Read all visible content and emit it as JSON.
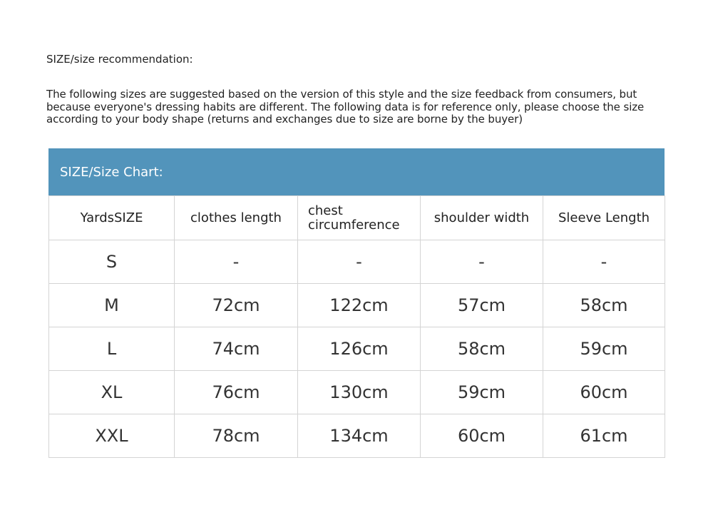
{
  "title": "SIZE/size recommendation:",
  "description": "The following sizes are suggested based on the version of this style and the size feedback from consumers, but because everyone's dressing habits are different. The following data is for reference only, please choose the size according to your body shape (returns and exchanges due to size are borne by the buyer)",
  "chart": {
    "heading": "SIZE/Size Chart:",
    "header_color": "#5294bb",
    "columns": [
      "YardsSIZE",
      "clothes length",
      "chest circumference",
      "shoulder width",
      "Sleeve Length"
    ],
    "rows": [
      [
        "S",
        "-",
        "-",
        "-",
        "-"
      ],
      [
        "M",
        "72cm",
        "122cm",
        "57cm",
        "58cm"
      ],
      [
        "L",
        "74cm",
        "126cm",
        "58cm",
        "59cm"
      ],
      [
        "XL",
        "76cm",
        "130cm",
        "59cm",
        "60cm"
      ],
      [
        "XXL",
        "78cm",
        "134cm",
        "60cm",
        "61cm"
      ]
    ]
  }
}
